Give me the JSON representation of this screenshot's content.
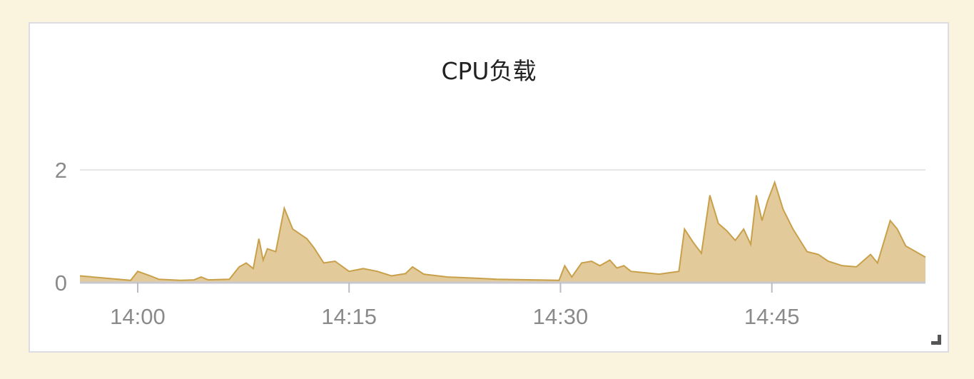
{
  "panel": {
    "title": "CPU负载"
  },
  "chart_data": {
    "type": "area",
    "title": "CPU负载",
    "xlabel": "",
    "ylabel": "",
    "x_ticks": [
      "14:00",
      "14:15",
      "14:30",
      "14:45"
    ],
    "y_ticks": [
      0,
      2
    ],
    "xlim_minutes": [
      55.9,
      115.9
    ],
    "ylim": [
      0,
      3.6
    ],
    "grid": true,
    "legend": "none",
    "series": [
      {
        "color": "#c9a04a",
        "fill": "#d9b87a",
        "points": [
          [
            55.9,
            0.12
          ],
          [
            59.5,
            0.04
          ],
          [
            60.0,
            0.2
          ],
          [
            60.9,
            0.12
          ],
          [
            61.5,
            0.06
          ],
          [
            63.0,
            0.04
          ],
          [
            64.0,
            0.05
          ],
          [
            64.5,
            0.1
          ],
          [
            65.0,
            0.05
          ],
          [
            66.5,
            0.06
          ],
          [
            67.2,
            0.28
          ],
          [
            67.7,
            0.35
          ],
          [
            68.2,
            0.25
          ],
          [
            68.6,
            0.78
          ],
          [
            68.9,
            0.4
          ],
          [
            69.2,
            0.6
          ],
          [
            69.8,
            0.55
          ],
          [
            70.4,
            1.32
          ],
          [
            71.0,
            0.95
          ],
          [
            72.0,
            0.78
          ],
          [
            72.5,
            0.62
          ],
          [
            73.2,
            0.35
          ],
          [
            74.0,
            0.38
          ],
          [
            75.0,
            0.2
          ],
          [
            76.0,
            0.25
          ],
          [
            77.0,
            0.2
          ],
          [
            78.0,
            0.12
          ],
          [
            79.0,
            0.16
          ],
          [
            79.5,
            0.28
          ],
          [
            80.3,
            0.15
          ],
          [
            82.0,
            0.1
          ],
          [
            84.0,
            0.08
          ],
          [
            85.5,
            0.06
          ],
          [
            88.0,
            0.05
          ],
          [
            89.9,
            0.04
          ],
          [
            90.3,
            0.3
          ],
          [
            90.8,
            0.1
          ],
          [
            91.5,
            0.35
          ],
          [
            92.2,
            0.38
          ],
          [
            92.8,
            0.3
          ],
          [
            93.5,
            0.4
          ],
          [
            94.0,
            0.26
          ],
          [
            94.5,
            0.3
          ],
          [
            95.0,
            0.2
          ],
          [
            97.0,
            0.15
          ],
          [
            98.4,
            0.2
          ],
          [
            98.8,
            0.95
          ],
          [
            99.4,
            0.72
          ],
          [
            100.0,
            0.52
          ],
          [
            100.6,
            1.55
          ],
          [
            101.2,
            1.05
          ],
          [
            101.8,
            0.92
          ],
          [
            102.4,
            0.75
          ],
          [
            103.0,
            0.95
          ],
          [
            103.5,
            0.68
          ],
          [
            103.9,
            1.55
          ],
          [
            104.3,
            1.1
          ],
          [
            104.7,
            1.45
          ],
          [
            105.2,
            1.78
          ],
          [
            105.8,
            1.3
          ],
          [
            106.5,
            0.95
          ],
          [
            107.5,
            0.55
          ],
          [
            108.3,
            0.5
          ],
          [
            109.0,
            0.38
          ],
          [
            110.0,
            0.3
          ],
          [
            111.0,
            0.28
          ],
          [
            112.0,
            0.5
          ],
          [
            112.5,
            0.35
          ],
          [
            113.4,
            1.1
          ],
          [
            113.9,
            0.95
          ],
          [
            114.5,
            0.65
          ],
          [
            115.9,
            0.45
          ]
        ],
        "points_note": "Minutes after 13:00"
      }
    ]
  }
}
